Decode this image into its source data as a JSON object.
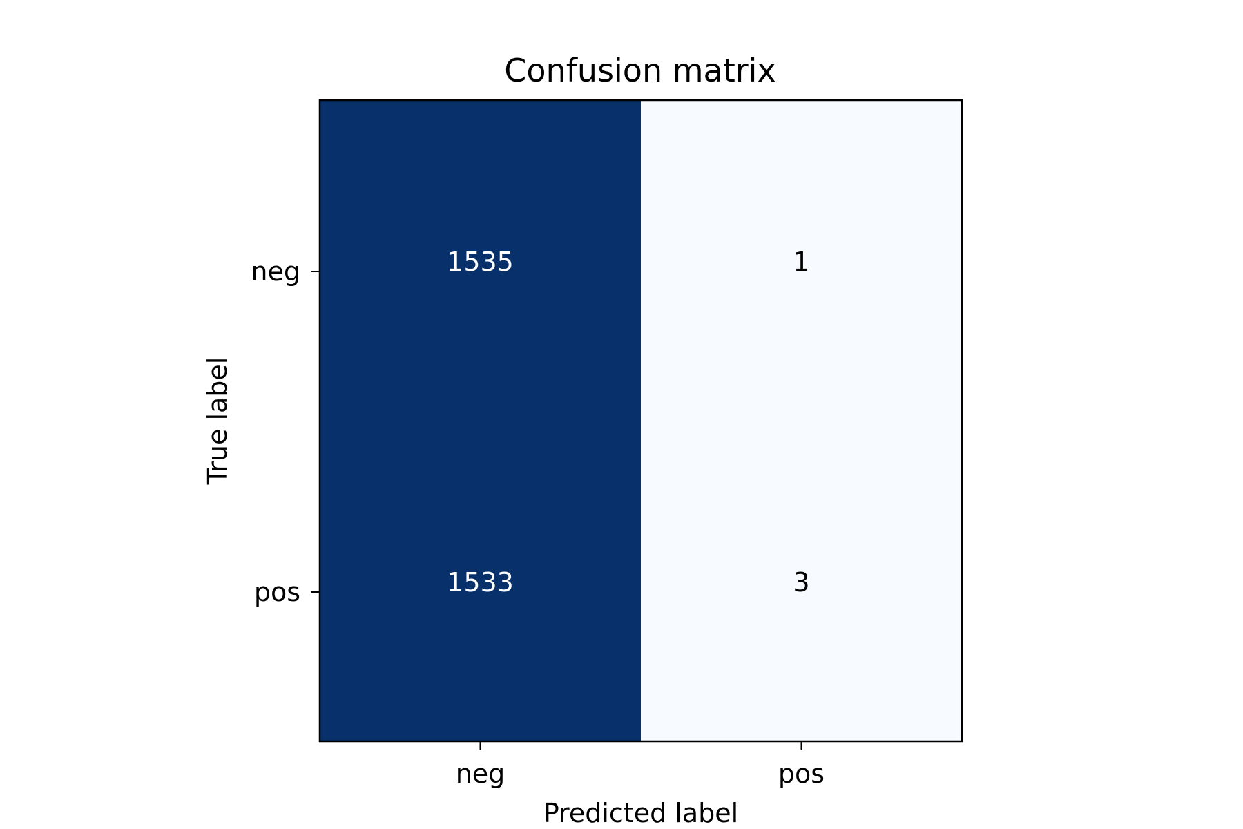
{
  "chart_data": {
    "type": "heatmap",
    "title": "Confusion matrix",
    "xlabel": "Predicted label",
    "ylabel": "True label",
    "x_categories": [
      "neg",
      "pos"
    ],
    "y_categories": [
      "neg",
      "pos"
    ],
    "values": [
      [
        1535,
        1
      ],
      [
        1533,
        3
      ]
    ],
    "colormap": "Blues",
    "colors": {
      "high": "#08306b",
      "low": "#f7fbff",
      "text_on_dark": "#ffffff",
      "text_on_light": "#000000",
      "frame": "#000000"
    },
    "grid": false,
    "legend": "none"
  }
}
